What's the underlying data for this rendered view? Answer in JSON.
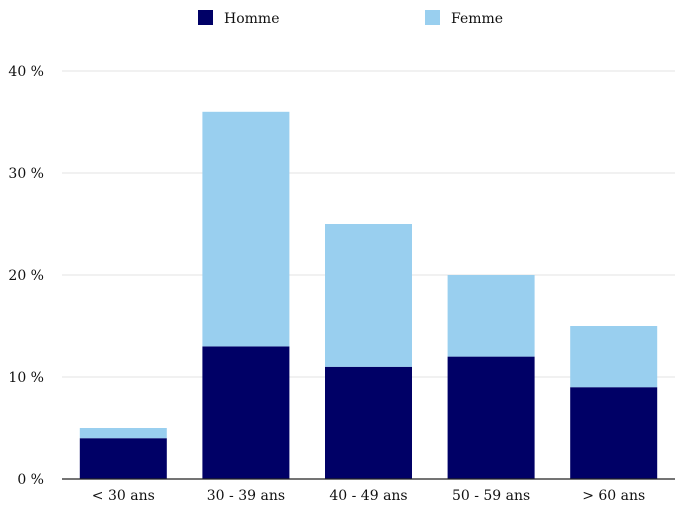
{
  "chart_data": {
    "type": "bar",
    "stacked": true,
    "categories": [
      "< 30 ans",
      "30 - 39 ans",
      "40 - 49 ans",
      "50 - 59 ans",
      "> 60 ans"
    ],
    "series": [
      {
        "name": "Homme",
        "values": [
          4,
          13,
          11,
          12,
          9
        ],
        "color": "#000066"
      },
      {
        "name": "Femme",
        "values": [
          1,
          23,
          14,
          8,
          6
        ],
        "color": "#99CFEF"
      }
    ],
    "ylim": [
      0,
      40
    ],
    "yticks": [
      0,
      10,
      20,
      30,
      40
    ],
    "ytick_labels": [
      "0 %",
      "10 %",
      "20 %",
      "30 %",
      "40 %"
    ],
    "grid": true,
    "legend_position": "top-center",
    "title": "",
    "xlabel": "",
    "ylabel": ""
  }
}
